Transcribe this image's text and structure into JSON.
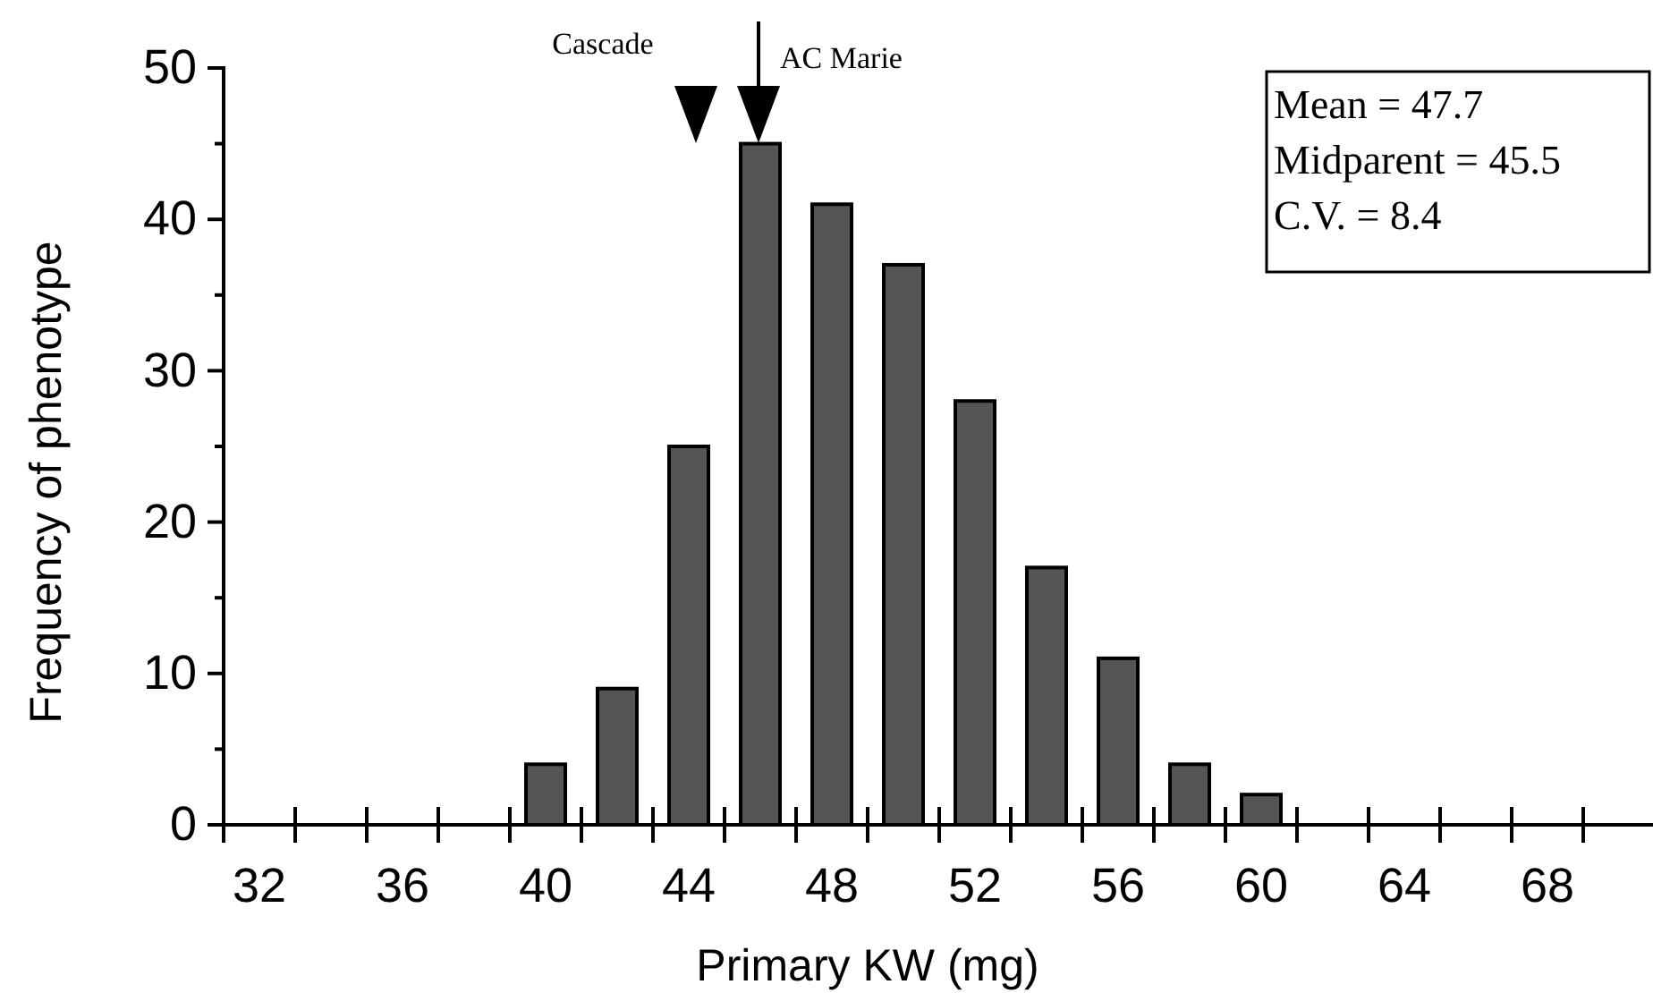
{
  "chart_data": {
    "type": "bar",
    "xlabel": "Primary KW (mg)",
    "ylabel": "Frequency of phenotype",
    "categories": [
      "32",
      null,
      "36",
      null,
      "40",
      null,
      "44",
      null,
      "48",
      null,
      "52",
      null,
      "56",
      null,
      "60",
      null,
      "64",
      null,
      "68",
      null
    ],
    "values": [
      0,
      0,
      0,
      0,
      4,
      9,
      25,
      45,
      41,
      37,
      28,
      17,
      11,
      4,
      2,
      0,
      0,
      0,
      0,
      0
    ],
    "color": "#555555",
    "ylim": [
      0,
      50
    ],
    "yticks": [
      0,
      {
        "value": 5,
        "label": null
      },
      10,
      {
        "value": 15,
        "label": null
      },
      20,
      {
        "value": 25,
        "label": null
      },
      30,
      {
        "value": 35,
        "label": null
      },
      40,
      {
        "value": 45,
        "label": null
      },
      50
    ],
    "grid": false,
    "annotations": [
      "Cascade",
      "AC Marie",
      "Mean = 47.7",
      "Midparent = 45.5",
      "C.V. = 8.4"
    ]
  }
}
